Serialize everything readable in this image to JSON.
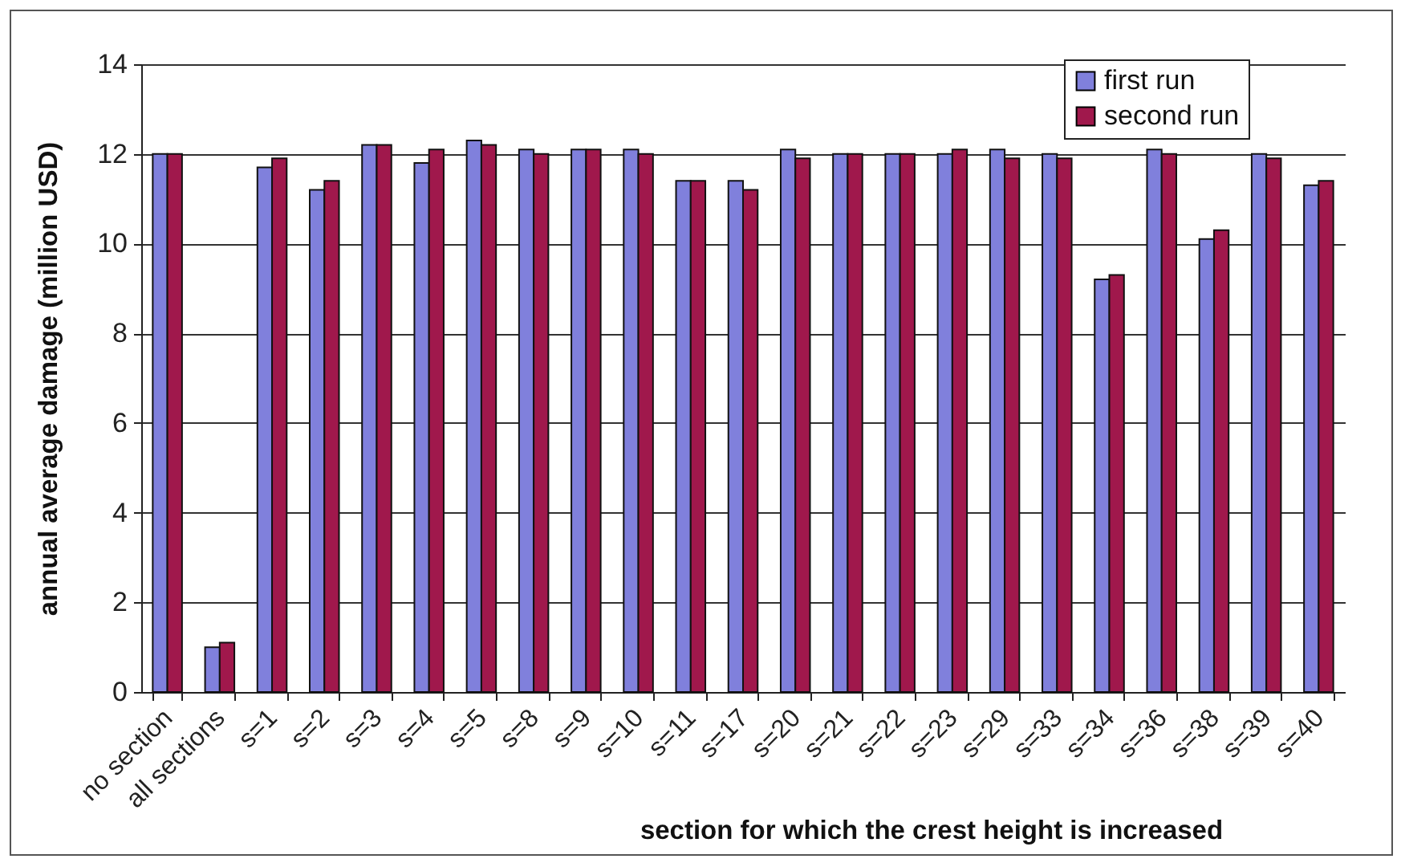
{
  "chart_data": {
    "type": "bar",
    "xlabel": "section for which the crest height is increased",
    "ylabel": "annual average damage (million USD)",
    "categories": [
      "no section",
      "all sections",
      "s=1",
      "s=2",
      "s=3",
      "s=4",
      "s=5",
      "s=8",
      "s=9",
      "s=10",
      "s=11",
      "s=17",
      "s=20",
      "s=21",
      "s=22",
      "s=23",
      "s=29",
      "s=33",
      "s=34",
      "s=36",
      "s=38",
      "s=39",
      "s=40"
    ],
    "series": [
      {
        "name": "first run",
        "color": "#8080dc",
        "values": [
          12.0,
          1.0,
          11.7,
          11.2,
          12.2,
          11.8,
          12.3,
          12.1,
          12.1,
          12.1,
          11.4,
          11.4,
          12.1,
          12.0,
          12.0,
          12.0,
          12.1,
          12.0,
          9.2,
          12.1,
          10.1,
          12.0,
          11.3
        ]
      },
      {
        "name": "second run",
        "color": "#a0184c",
        "values": [
          12.0,
          1.1,
          11.9,
          11.4,
          12.2,
          12.1,
          12.2,
          12.0,
          12.1,
          12.0,
          11.4,
          11.2,
          11.9,
          12.0,
          12.0,
          12.1,
          11.9,
          11.9,
          9.3,
          12.0,
          10.3,
          11.9,
          11.4
        ]
      }
    ],
    "ylim": [
      0,
      14
    ],
    "yticks": [
      0,
      2,
      4,
      6,
      8,
      10,
      12,
      14
    ],
    "grid": "y",
    "legend": "top right"
  }
}
